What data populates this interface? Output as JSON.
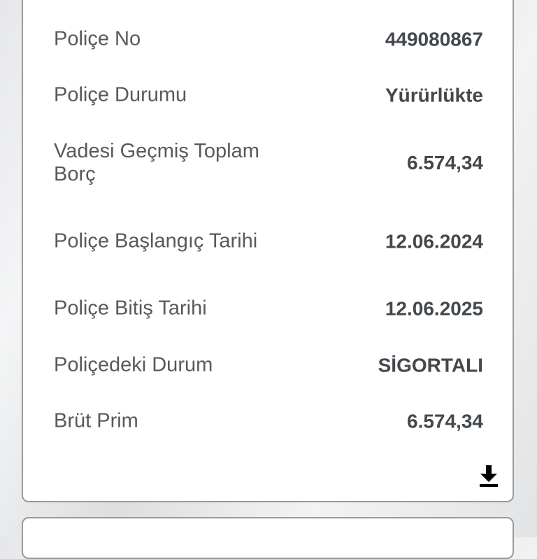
{
  "policy_details": [
    {
      "label": "Poliçe No",
      "value": "449080867"
    },
    {
      "label": "Poliçe Durumu",
      "value": "Yürürlükte"
    },
    {
      "label": "Vadesi Geçmiş Toplam Borç",
      "value": "6.574,34"
    },
    {
      "label": "Poliçe Başlangıç Tarihi",
      "value": "12.06.2024"
    },
    {
      "label": "Poliçe Bitiş Tarihi",
      "value": "12.06.2025"
    },
    {
      "label": "Poliçedeki Durum",
      "value": "SİGORTALI"
    },
    {
      "label": "Brüt Prim",
      "value": "6.574,34"
    }
  ],
  "icons": {
    "download": "download-icon"
  }
}
